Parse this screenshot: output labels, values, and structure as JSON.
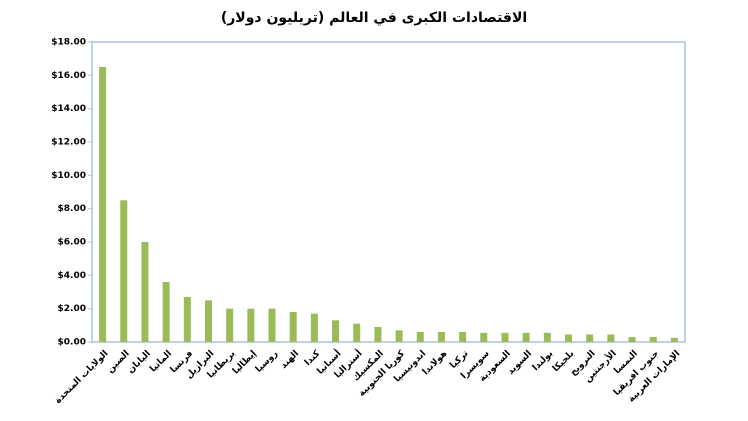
{
  "chart_data": {
    "type": "bar",
    "title": "الاقتصادات الكبرى في العالم (تريليون دولار)",
    "categories": [
      "الولايات المتحدة",
      "الصين",
      "اليابان",
      "المانيا",
      "فرنسا",
      "البرازيل",
      "بريطانيا",
      "إيطاليا",
      "روسيا",
      "الهند",
      "كندا",
      "أسبانيا",
      "أستراليا",
      "المكسيك",
      "كوريا الجنوبية",
      "اندونيسيا",
      "هولاندا",
      "تركيا",
      "سويسرا",
      "السعودية",
      "السويد",
      "بولندا",
      "بلجيكا",
      "النرويج",
      "الأرجنتين",
      "النمسا",
      "جنوب افريقيا",
      "الإمارات العربية"
    ],
    "values": [
      16.5,
      8.5,
      6.0,
      3.6,
      2.7,
      2.5,
      2.0,
      2.0,
      2.0,
      1.8,
      1.7,
      1.3,
      1.1,
      0.9,
      0.7,
      0.6,
      0.6,
      0.6,
      0.55,
      0.55,
      0.55,
      0.55,
      0.45,
      0.45,
      0.45,
      0.3,
      0.3,
      0.25
    ],
    "color": "#9bbb59",
    "ylim": [
      0,
      18
    ],
    "yticks": [
      {
        "value": 0,
        "label": "$0.00"
      },
      {
        "value": 2,
        "label": "$2.00"
      },
      {
        "value": 4,
        "label": "$4.00"
      },
      {
        "value": 6,
        "label": "$6.00"
      },
      {
        "value": 8,
        "label": "$8.00"
      },
      {
        "value": 10,
        "label": "$10.00"
      },
      {
        "value": 12,
        "label": "$12.00"
      },
      {
        "value": 14,
        "label": "$14.00"
      },
      {
        "value": 16,
        "label": "$16.00"
      },
      {
        "value": 18,
        "label": "$18.00"
      }
    ]
  }
}
